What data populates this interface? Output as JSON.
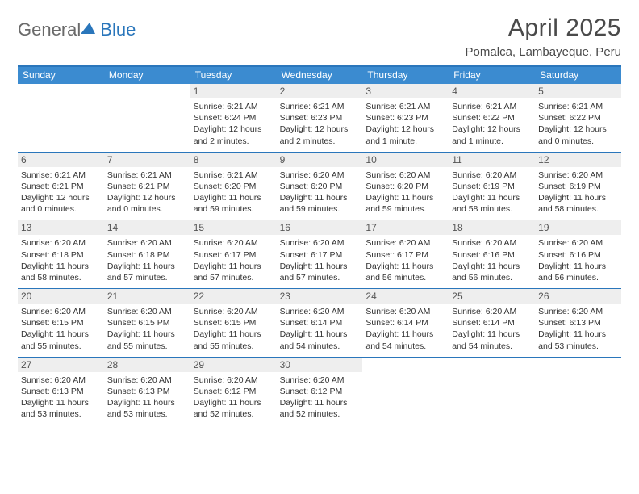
{
  "logo": {
    "general": "General",
    "blue": "Blue"
  },
  "title": "April 2025",
  "location": "Pomalca, Lambayeque, Peru",
  "day_headers": [
    "Sunday",
    "Monday",
    "Tuesday",
    "Wednesday",
    "Thursday",
    "Friday",
    "Saturday"
  ],
  "header_bg": "#3b8bd0",
  "border_color": "#2a76bb",
  "weeks": [
    [
      {
        "day": "",
        "sunrise": "",
        "sunset": "",
        "daylight1": "",
        "daylight2": ""
      },
      {
        "day": "",
        "sunrise": "",
        "sunset": "",
        "daylight1": "",
        "daylight2": ""
      },
      {
        "day": "1",
        "sunrise": "Sunrise: 6:21 AM",
        "sunset": "Sunset: 6:24 PM",
        "daylight1": "Daylight: 12 hours",
        "daylight2": "and 2 minutes."
      },
      {
        "day": "2",
        "sunrise": "Sunrise: 6:21 AM",
        "sunset": "Sunset: 6:23 PM",
        "daylight1": "Daylight: 12 hours",
        "daylight2": "and 2 minutes."
      },
      {
        "day": "3",
        "sunrise": "Sunrise: 6:21 AM",
        "sunset": "Sunset: 6:23 PM",
        "daylight1": "Daylight: 12 hours",
        "daylight2": "and 1 minute."
      },
      {
        "day": "4",
        "sunrise": "Sunrise: 6:21 AM",
        "sunset": "Sunset: 6:22 PM",
        "daylight1": "Daylight: 12 hours",
        "daylight2": "and 1 minute."
      },
      {
        "day": "5",
        "sunrise": "Sunrise: 6:21 AM",
        "sunset": "Sunset: 6:22 PM",
        "daylight1": "Daylight: 12 hours",
        "daylight2": "and 0 minutes."
      }
    ],
    [
      {
        "day": "6",
        "sunrise": "Sunrise: 6:21 AM",
        "sunset": "Sunset: 6:21 PM",
        "daylight1": "Daylight: 12 hours",
        "daylight2": "and 0 minutes."
      },
      {
        "day": "7",
        "sunrise": "Sunrise: 6:21 AM",
        "sunset": "Sunset: 6:21 PM",
        "daylight1": "Daylight: 12 hours",
        "daylight2": "and 0 minutes."
      },
      {
        "day": "8",
        "sunrise": "Sunrise: 6:21 AM",
        "sunset": "Sunset: 6:20 PM",
        "daylight1": "Daylight: 11 hours",
        "daylight2": "and 59 minutes."
      },
      {
        "day": "9",
        "sunrise": "Sunrise: 6:20 AM",
        "sunset": "Sunset: 6:20 PM",
        "daylight1": "Daylight: 11 hours",
        "daylight2": "and 59 minutes."
      },
      {
        "day": "10",
        "sunrise": "Sunrise: 6:20 AM",
        "sunset": "Sunset: 6:20 PM",
        "daylight1": "Daylight: 11 hours",
        "daylight2": "and 59 minutes."
      },
      {
        "day": "11",
        "sunrise": "Sunrise: 6:20 AM",
        "sunset": "Sunset: 6:19 PM",
        "daylight1": "Daylight: 11 hours",
        "daylight2": "and 58 minutes."
      },
      {
        "day": "12",
        "sunrise": "Sunrise: 6:20 AM",
        "sunset": "Sunset: 6:19 PM",
        "daylight1": "Daylight: 11 hours",
        "daylight2": "and 58 minutes."
      }
    ],
    [
      {
        "day": "13",
        "sunrise": "Sunrise: 6:20 AM",
        "sunset": "Sunset: 6:18 PM",
        "daylight1": "Daylight: 11 hours",
        "daylight2": "and 58 minutes."
      },
      {
        "day": "14",
        "sunrise": "Sunrise: 6:20 AM",
        "sunset": "Sunset: 6:18 PM",
        "daylight1": "Daylight: 11 hours",
        "daylight2": "and 57 minutes."
      },
      {
        "day": "15",
        "sunrise": "Sunrise: 6:20 AM",
        "sunset": "Sunset: 6:17 PM",
        "daylight1": "Daylight: 11 hours",
        "daylight2": "and 57 minutes."
      },
      {
        "day": "16",
        "sunrise": "Sunrise: 6:20 AM",
        "sunset": "Sunset: 6:17 PM",
        "daylight1": "Daylight: 11 hours",
        "daylight2": "and 57 minutes."
      },
      {
        "day": "17",
        "sunrise": "Sunrise: 6:20 AM",
        "sunset": "Sunset: 6:17 PM",
        "daylight1": "Daylight: 11 hours",
        "daylight2": "and 56 minutes."
      },
      {
        "day": "18",
        "sunrise": "Sunrise: 6:20 AM",
        "sunset": "Sunset: 6:16 PM",
        "daylight1": "Daylight: 11 hours",
        "daylight2": "and 56 minutes."
      },
      {
        "day": "19",
        "sunrise": "Sunrise: 6:20 AM",
        "sunset": "Sunset: 6:16 PM",
        "daylight1": "Daylight: 11 hours",
        "daylight2": "and 56 minutes."
      }
    ],
    [
      {
        "day": "20",
        "sunrise": "Sunrise: 6:20 AM",
        "sunset": "Sunset: 6:15 PM",
        "daylight1": "Daylight: 11 hours",
        "daylight2": "and 55 minutes."
      },
      {
        "day": "21",
        "sunrise": "Sunrise: 6:20 AM",
        "sunset": "Sunset: 6:15 PM",
        "daylight1": "Daylight: 11 hours",
        "daylight2": "and 55 minutes."
      },
      {
        "day": "22",
        "sunrise": "Sunrise: 6:20 AM",
        "sunset": "Sunset: 6:15 PM",
        "daylight1": "Daylight: 11 hours",
        "daylight2": "and 55 minutes."
      },
      {
        "day": "23",
        "sunrise": "Sunrise: 6:20 AM",
        "sunset": "Sunset: 6:14 PM",
        "daylight1": "Daylight: 11 hours",
        "daylight2": "and 54 minutes."
      },
      {
        "day": "24",
        "sunrise": "Sunrise: 6:20 AM",
        "sunset": "Sunset: 6:14 PM",
        "daylight1": "Daylight: 11 hours",
        "daylight2": "and 54 minutes."
      },
      {
        "day": "25",
        "sunrise": "Sunrise: 6:20 AM",
        "sunset": "Sunset: 6:14 PM",
        "daylight1": "Daylight: 11 hours",
        "daylight2": "and 54 minutes."
      },
      {
        "day": "26",
        "sunrise": "Sunrise: 6:20 AM",
        "sunset": "Sunset: 6:13 PM",
        "daylight1": "Daylight: 11 hours",
        "daylight2": "and 53 minutes."
      }
    ],
    [
      {
        "day": "27",
        "sunrise": "Sunrise: 6:20 AM",
        "sunset": "Sunset: 6:13 PM",
        "daylight1": "Daylight: 11 hours",
        "daylight2": "and 53 minutes."
      },
      {
        "day": "28",
        "sunrise": "Sunrise: 6:20 AM",
        "sunset": "Sunset: 6:13 PM",
        "daylight1": "Daylight: 11 hours",
        "daylight2": "and 53 minutes."
      },
      {
        "day": "29",
        "sunrise": "Sunrise: 6:20 AM",
        "sunset": "Sunset: 6:12 PM",
        "daylight1": "Daylight: 11 hours",
        "daylight2": "and 52 minutes."
      },
      {
        "day": "30",
        "sunrise": "Sunrise: 6:20 AM",
        "sunset": "Sunset: 6:12 PM",
        "daylight1": "Daylight: 11 hours",
        "daylight2": "and 52 minutes."
      },
      {
        "day": "",
        "sunrise": "",
        "sunset": "",
        "daylight1": "",
        "daylight2": ""
      },
      {
        "day": "",
        "sunrise": "",
        "sunset": "",
        "daylight1": "",
        "daylight2": ""
      },
      {
        "day": "",
        "sunrise": "",
        "sunset": "",
        "daylight1": "",
        "daylight2": ""
      }
    ]
  ]
}
